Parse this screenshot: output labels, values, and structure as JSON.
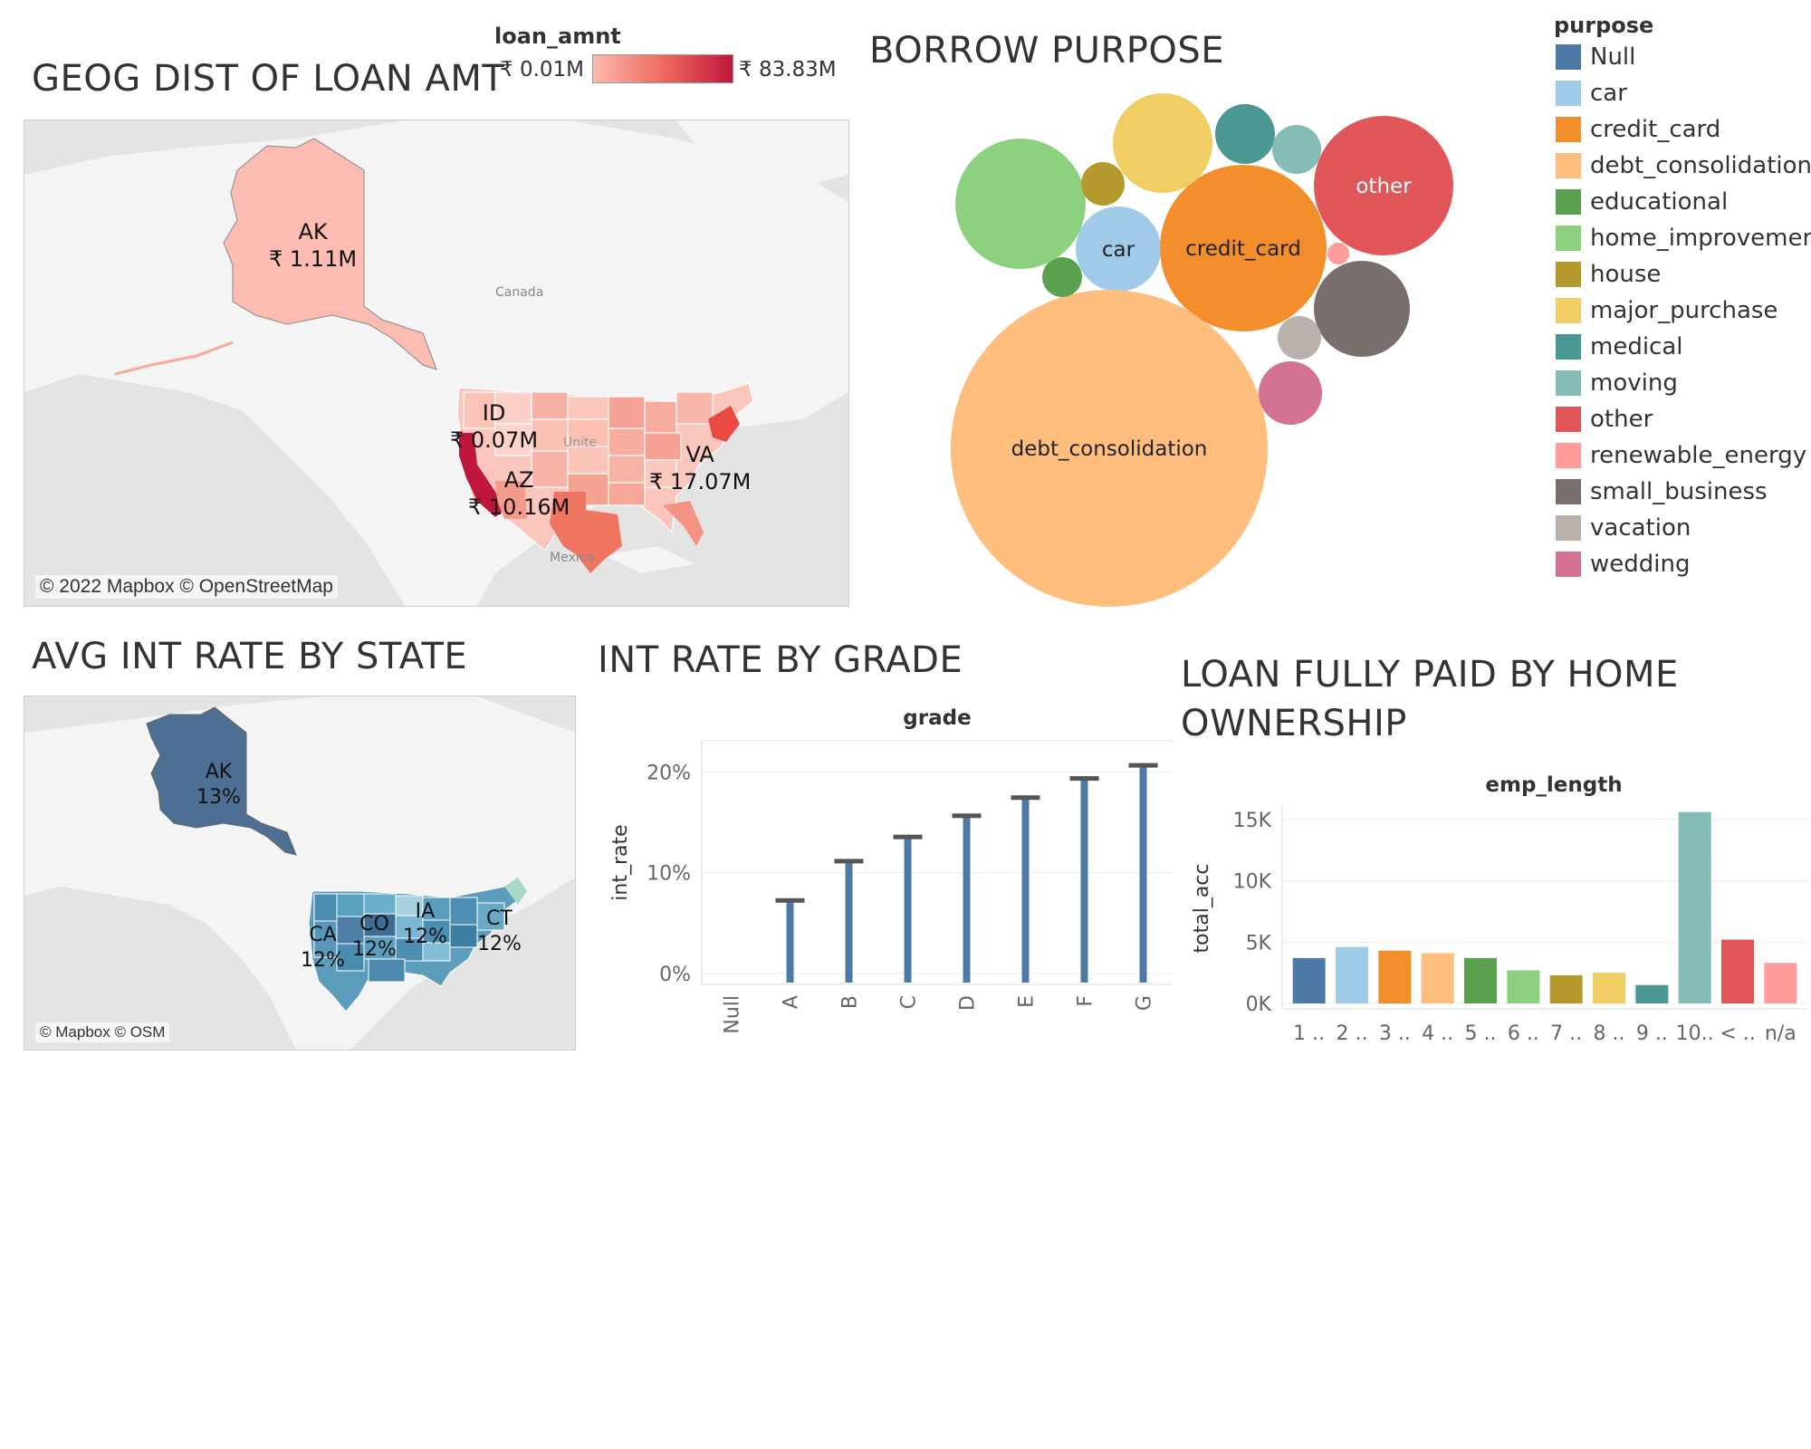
{
  "dashboard": {
    "geo_loan": {
      "title": "GEOG DIST OF LOAN AMT",
      "legend_title": "loan_amnt",
      "legend_min": "₹ 0.01M",
      "legend_max": "₹ 83.83M",
      "color_low": "#fcb9ad",
      "color_high": "#c1163b",
      "credit": "© 2022 Mapbox © OpenStreetMap",
      "map_labels": {
        "canada": "Canada",
        "united": "Unite",
        "mexico": "Mexico"
      },
      "states": [
        {
          "code": "AK",
          "value": "₹ 1.11M"
        },
        {
          "code": "ID",
          "value": "₹ 0.07M"
        },
        {
          "code": "AZ",
          "value": "₹ 10.16M"
        },
        {
          "code": "VA",
          "value": "₹ 17.07M"
        }
      ]
    },
    "purpose": {
      "title": "BORROW PURPOSE",
      "legend_title": "purpose",
      "items": [
        {
          "name": "Null",
          "color": "#4e79a7",
          "bubble_label": ""
        },
        {
          "name": "car",
          "color": "#a0cbe8",
          "bubble_label": "car"
        },
        {
          "name": "credit_card",
          "color": "#f28e2b",
          "bubble_label": "credit_card"
        },
        {
          "name": "debt_consolidation",
          "color": "#ffbe7d",
          "bubble_label": "debt_consolidation"
        },
        {
          "name": "educational",
          "color": "#59a14f",
          "bubble_label": ""
        },
        {
          "name": "home_improvement",
          "color": "#8cd17d",
          "bubble_label": ""
        },
        {
          "name": "house",
          "color": "#b6992d",
          "bubble_label": ""
        },
        {
          "name": "major_purchase",
          "color": "#f1ce63",
          "bubble_label": ""
        },
        {
          "name": "medical",
          "color": "#499894",
          "bubble_label": ""
        },
        {
          "name": "moving",
          "color": "#86bcb6",
          "bubble_label": ""
        },
        {
          "name": "other",
          "color": "#e15759",
          "bubble_label": "other"
        },
        {
          "name": "renewable_energy",
          "color": "#ff9d9a",
          "bubble_label": ""
        },
        {
          "name": "small_business",
          "color": "#79706e",
          "bubble_label": ""
        },
        {
          "name": "vacation",
          "color": "#bab0ac",
          "bubble_label": ""
        },
        {
          "name": "wedding",
          "color": "#d37295",
          "bubble_label": ""
        }
      ]
    },
    "int_state": {
      "title": "AVG INT RATE BY STATE",
      "credit": "© Mapbox © OSM",
      "states": [
        {
          "code": "AK",
          "value": "13%"
        },
        {
          "code": "CA",
          "value": "12%"
        },
        {
          "code": "CO",
          "value": "12%"
        },
        {
          "code": "IA",
          "value": "12%"
        },
        {
          "code": "CT",
          "value": "12%"
        }
      ]
    },
    "grade_chart_title": "INT RATE BY GRADE",
    "home_chart_title": "LOAN FULLY PAID BY HOME OWNERSHIP"
  },
  "chart_data": [
    {
      "type": "bar",
      "title": "INT RATE BY GRADE",
      "column_header": "grade",
      "ylabel": "int_rate",
      "categories": [
        "Null",
        "A",
        "B",
        "C",
        "D",
        "E",
        "F",
        "G"
      ],
      "values": [
        0,
        7.2,
        11.1,
        13.5,
        15.6,
        17.4,
        19.3,
        20.6
      ],
      "yticks": [
        "0%",
        "10%",
        "20%"
      ],
      "ylim": [
        0,
        22
      ],
      "bar_color": "#4e79a7",
      "cap_color": "#555555"
    },
    {
      "type": "bar",
      "title": "LOAN FULLY PAID BY HOME OWNERSHIP",
      "column_header": "emp_length",
      "ylabel": "total_acc",
      "categories": [
        "1 ..",
        "2 ..",
        "3 ..",
        "4 ..",
        "5 ..",
        "6 ..",
        "7 ..",
        "8 ..",
        "9 ..",
        "10..",
        "< ..",
        "n/a"
      ],
      "values": [
        3700,
        4600,
        4300,
        4100,
        3700,
        2700,
        2300,
        2500,
        1500,
        15600,
        5200,
        3300
      ],
      "colors": [
        "#4e79a7",
        "#a0cbe8",
        "#f28e2b",
        "#ffbe7d",
        "#59a14f",
        "#8cd17d",
        "#b6992d",
        "#f1ce63",
        "#499894",
        "#86bcb6",
        "#e15759",
        "#ff9d9a"
      ],
      "yticks": [
        "0K",
        "5K",
        "10K",
        "15K"
      ],
      "ylim": [
        0,
        15500
      ]
    }
  ]
}
